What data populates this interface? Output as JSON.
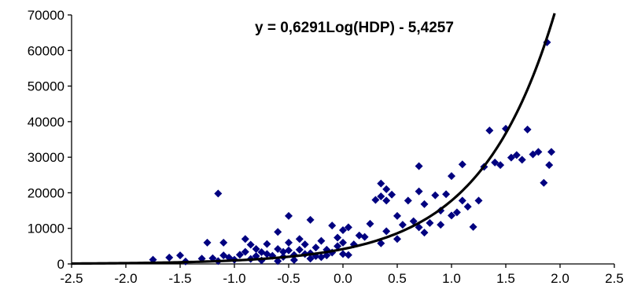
{
  "chart_data": {
    "type": "scatter",
    "annotation": "y = 0,6291Log(HDP) - 5,4257",
    "xlim": [
      -2.5,
      2.5
    ],
    "ylim": [
      0,
      70000
    ],
    "x_ticks": [
      "-2.5",
      "-2.0",
      "-1.5",
      "-1.0",
      "-0.5",
      "0.0",
      "0.5",
      "1.0",
      "1.5",
      "2.0",
      "2.5"
    ],
    "y_ticks": [
      "0",
      "10000",
      "20000",
      "30000",
      "40000",
      "50000",
      "60000",
      "70000"
    ],
    "grid": false,
    "legend": "none",
    "colors": {
      "points": "#000080",
      "trendline": "#000000",
      "axis": "#000000"
    },
    "trendline": {
      "type": "exponential",
      "equation_base": 10,
      "slope": 0.6291,
      "intercept": -5.4257,
      "scale_at_zero": 4180
    },
    "points": [
      [
        -1.75,
        1200
      ],
      [
        -1.6,
        1800
      ],
      [
        -1.5,
        2400
      ],
      [
        -1.45,
        700
      ],
      [
        -1.3,
        1500
      ],
      [
        -1.25,
        6000
      ],
      [
        -1.2,
        1600
      ],
      [
        -1.15,
        19800
      ],
      [
        -1.15,
        800
      ],
      [
        -1.1,
        6000
      ],
      [
        -1.1,
        2400
      ],
      [
        -1.05,
        1800
      ],
      [
        -1.0,
        1200
      ],
      [
        -0.95,
        2600
      ],
      [
        -0.9,
        3400
      ],
      [
        -0.9,
        7000
      ],
      [
        -0.85,
        1400
      ],
      [
        -0.85,
        5400
      ],
      [
        -0.8,
        2200
      ],
      [
        -0.8,
        4200
      ],
      [
        -0.75,
        3300
      ],
      [
        -0.75,
        1000
      ],
      [
        -0.7,
        2800
      ],
      [
        -0.7,
        5600
      ],
      [
        -0.65,
        2300
      ],
      [
        -0.6,
        9000
      ],
      [
        -0.6,
        4200
      ],
      [
        -0.6,
        800
      ],
      [
        -0.55,
        3400
      ],
      [
        -0.55,
        2000
      ],
      [
        -0.5,
        13500
      ],
      [
        -0.5,
        6000
      ],
      [
        -0.5,
        3800
      ],
      [
        -0.45,
        2500
      ],
      [
        -0.45,
        1100
      ],
      [
        -0.4,
        7000
      ],
      [
        -0.4,
        4000
      ],
      [
        -0.35,
        2800
      ],
      [
        -0.35,
        5500
      ],
      [
        -0.3,
        12400
      ],
      [
        -0.3,
        3000
      ],
      [
        -0.3,
        1500
      ],
      [
        -0.25,
        4600
      ],
      [
        -0.25,
        2200
      ],
      [
        -0.2,
        6500
      ],
      [
        -0.2,
        1900
      ],
      [
        -0.15,
        4000
      ],
      [
        -0.15,
        2400
      ],
      [
        -0.1,
        10800
      ],
      [
        -0.1,
        3200
      ],
      [
        -0.05,
        5000
      ],
      [
        -0.05,
        7400
      ],
      [
        0.0,
        9500
      ],
      [
        0.0,
        6000
      ],
      [
        0.0,
        2800
      ],
      [
        0.05,
        10300
      ],
      [
        0.05,
        2500
      ],
      [
        0.1,
        5500
      ],
      [
        0.15,
        8000
      ],
      [
        0.2,
        7600
      ],
      [
        0.25,
        11300
      ],
      [
        0.3,
        18000
      ],
      [
        0.35,
        19000
      ],
      [
        0.35,
        22600
      ],
      [
        0.35,
        5800
      ],
      [
        0.4,
        21000
      ],
      [
        0.4,
        17800
      ],
      [
        0.4,
        9200
      ],
      [
        0.45,
        19500
      ],
      [
        0.5,
        13500
      ],
      [
        0.5,
        7000
      ],
      [
        0.55,
        11000
      ],
      [
        0.6,
        17800
      ],
      [
        0.65,
        12000
      ],
      [
        0.7,
        27500
      ],
      [
        0.7,
        20400
      ],
      [
        0.7,
        10300
      ],
      [
        0.75,
        16800
      ],
      [
        0.75,
        8800
      ],
      [
        0.8,
        11500
      ],
      [
        0.85,
        19300
      ],
      [
        0.9,
        15000
      ],
      [
        0.9,
        11000
      ],
      [
        0.95,
        19600
      ],
      [
        1.0,
        24700
      ],
      [
        1.0,
        13600
      ],
      [
        1.05,
        14500
      ],
      [
        1.1,
        28000
      ],
      [
        1.1,
        17800
      ],
      [
        1.15,
        16100
      ],
      [
        1.2,
        10400
      ],
      [
        1.25,
        17800
      ],
      [
        1.3,
        27300
      ],
      [
        1.35,
        37500
      ],
      [
        1.4,
        28500
      ],
      [
        1.45,
        27800
      ],
      [
        1.5,
        38000
      ],
      [
        1.55,
        29900
      ],
      [
        1.6,
        30600
      ],
      [
        1.65,
        29300
      ],
      [
        1.7,
        37800
      ],
      [
        1.75,
        30800
      ],
      [
        1.8,
        31500
      ],
      [
        1.85,
        22800
      ],
      [
        1.88,
        62300
      ],
      [
        1.9,
        27800
      ],
      [
        1.92,
        31500
      ]
    ]
  }
}
